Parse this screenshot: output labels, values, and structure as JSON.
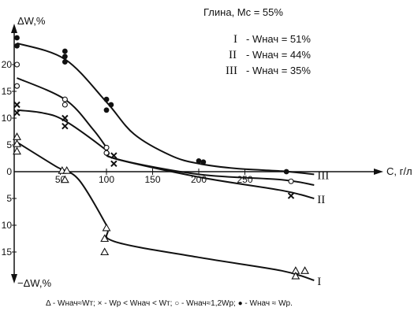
{
  "chart_data": {
    "type": "line",
    "title": "Глина, Mс = 55%",
    "ylabel_top": "ΔW,%",
    "ylabel_bottom": "−ΔW,%",
    "xlabel": "C, г/л",
    "xlim": [
      0,
      320
    ],
    "ylim": [
      -20,
      25
    ],
    "x_ticks": [
      50,
      100,
      150,
      200,
      250
    ],
    "y_ticks_positive": [
      5,
      10,
      15,
      20
    ],
    "y_ticks_negative": [
      5,
      10,
      15
    ],
    "y_tick_zero": "0",
    "legend": [
      {
        "roman": "I",
        "text": "- Wнач = 51%"
      },
      {
        "roman": "II",
        "text": "- Wнач = 44%"
      },
      {
        "roman": "III",
        "text": "- Wнач = 35%"
      }
    ],
    "footnote": "Δ  - Wнач≈Wт;  × - Wр < Wнач < Wт;  ○ - Wнач≈1,2Wр;  ● - Wнач ≈ Wр.",
    "series": [
      {
        "marker": "triangle",
        "color": "#111111",
        "end_label": "I",
        "line": [
          [
            3,
            5.5
          ],
          [
            45,
            1
          ],
          [
            70,
            -1.5
          ],
          [
            100,
            -10
          ],
          [
            108,
            -13
          ],
          [
            200,
            -16
          ],
          [
            290,
            -18.5
          ],
          [
            325,
            -20.3
          ]
        ],
        "points": [
          [
            3,
            6.5
          ],
          [
            3,
            5.2
          ],
          [
            3,
            3.8
          ],
          [
            52,
            0.2
          ],
          [
            57,
            0.2
          ],
          [
            55,
            -1.5
          ],
          [
            100,
            -10.5
          ],
          [
            98,
            -12.5
          ],
          [
            98,
            -15
          ],
          [
            305,
            -18.5
          ],
          [
            315,
            -18.5
          ],
          [
            305,
            -19.5
          ]
        ]
      },
      {
        "marker": "cross",
        "color": "#111111",
        "end_label": "II",
        "line": [
          [
            3,
            11.5
          ],
          [
            30,
            11
          ],
          [
            55,
            9.5
          ],
          [
            100,
            4
          ],
          [
            108,
            2.5
          ],
          [
            200,
            -1
          ],
          [
            290,
            -3.5
          ],
          [
            325,
            -5
          ]
        ],
        "points": [
          [
            3,
            12.5
          ],
          [
            3,
            11
          ],
          [
            55,
            10
          ],
          [
            55,
            8.5
          ],
          [
            108,
            3
          ],
          [
            108,
            1.5
          ],
          [
            300,
            -4.5
          ]
        ]
      },
      {
        "marker": "circle",
        "color": "#111111",
        "end_label": "",
        "line": [
          [
            3,
            17.5
          ],
          [
            55,
            13.5
          ],
          [
            85,
            8
          ],
          [
            100,
            4.5
          ],
          [
            108,
            2.5
          ],
          [
            200,
            -0.5
          ],
          [
            290,
            -1.5
          ],
          [
            325,
            -2.5
          ]
        ],
        "points": [
          [
            3,
            20
          ],
          [
            3,
            16
          ],
          [
            55,
            13.5
          ],
          [
            55,
            12.5
          ],
          [
            100,
            4.5
          ],
          [
            100,
            3.5
          ],
          [
            300,
            -1.8
          ]
        ]
      },
      {
        "marker": "dot",
        "color": "#111111",
        "end_label": "III",
        "line": [
          [
            3,
            24
          ],
          [
            55,
            21
          ],
          [
            100,
            13
          ],
          [
            130,
            7
          ],
          [
            170,
            3
          ],
          [
            200,
            1.5
          ],
          [
            240,
            0.6
          ],
          [
            290,
            0.1
          ],
          [
            325,
            -0.5
          ]
        ],
        "points": [
          [
            3,
            25
          ],
          [
            3,
            23.5
          ],
          [
            55,
            22.5
          ],
          [
            55,
            21.5
          ],
          [
            55,
            20.5
          ],
          [
            100,
            13.5
          ],
          [
            105,
            12.5
          ],
          [
            100,
            11.5
          ],
          [
            200,
            2
          ],
          [
            205,
            1.8
          ],
          [
            295,
            0
          ]
        ]
      }
    ]
  }
}
